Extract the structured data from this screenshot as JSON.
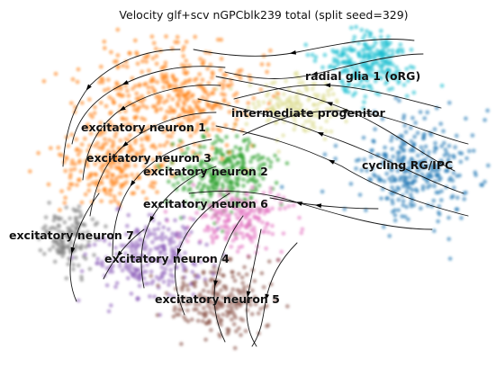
{
  "chart_data": {
    "type": "scatter",
    "subtype": "embedding-velocity-stream",
    "title": "Velocity glf+scv nGPCblk239 total (split seed=329)",
    "xlabel": "",
    "ylabel": "",
    "axes_visible": false,
    "grid": false,
    "legend": "on-data",
    "clusters": [
      {
        "name": "radial glia 1 (oRG)",
        "color": "#17becf"
      },
      {
        "name": "intermediate progenitor",
        "color": "#dbdb8d"
      },
      {
        "name": "cycling RG/IPC",
        "color": "#1f77b4"
      },
      {
        "name": "excitatory neuron 1",
        "color": "#ff7f0e"
      },
      {
        "name": "excitatory neuron 3",
        "color": "#ff7f0e"
      },
      {
        "name": "excitatory neuron 2",
        "color": "#2ca02c"
      },
      {
        "name": "excitatory neuron 6",
        "color": "#e377c2"
      },
      {
        "name": "excitatory neuron 7",
        "color": "#7f7f7f"
      },
      {
        "name": "excitatory neuron 4",
        "color": "#9467bd"
      },
      {
        "name": "excitatory neuron 5",
        "color": "#8c564b"
      }
    ]
  }
}
